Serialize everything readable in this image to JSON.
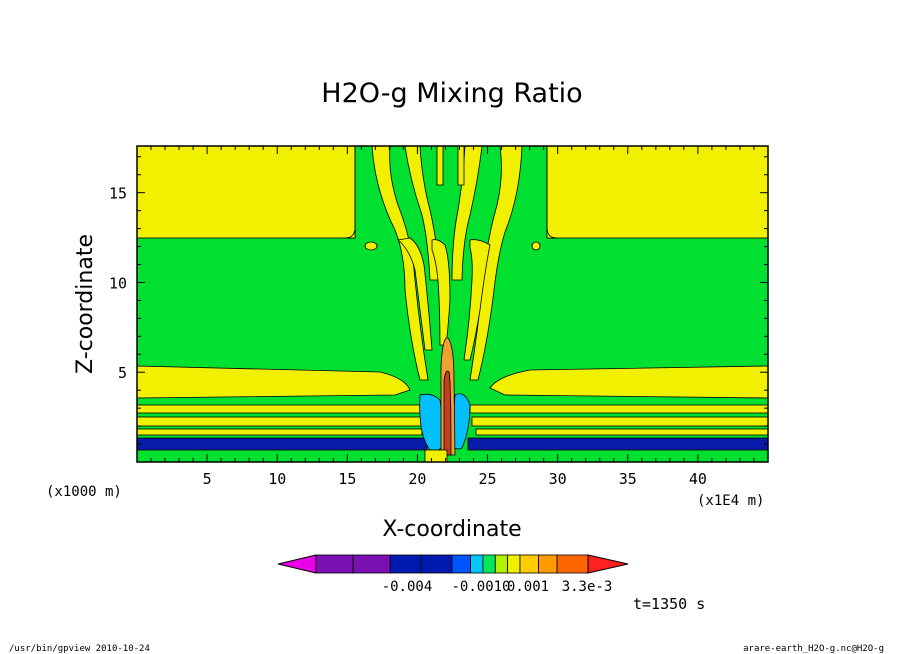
{
  "chart_data": {
    "type": "heatmap",
    "title": "H2O-g Mixing Ratio",
    "xlabel": "X-coordinate",
    "ylabel": "Z-coordinate",
    "x_scale_note": "(x1E4 m)",
    "y_scale_note": "(x1000 m)",
    "xlim": [
      0,
      45
    ],
    "ylim": [
      0,
      17.6
    ],
    "x_ticks": [
      "5",
      "10",
      "15",
      "20",
      "25",
      "30",
      "35",
      "40"
    ],
    "y_ticks": [
      "5",
      "10",
      "15"
    ],
    "x_tick_values": [
      5,
      10,
      15,
      20,
      25,
      30,
      35,
      40
    ],
    "y_tick_values": [
      5,
      10,
      15
    ],
    "colorbar": {
      "colors": [
        "#e800e8",
        "#7a10b0",
        "#7a10b0",
        "#001ab0",
        "#001ab0",
        "#0055ff",
        "#00c8ff",
        "#00e85a",
        "#b4f000",
        "#f0f000",
        "#ffcc00",
        "#ff9900",
        "#ff6600",
        "#ff2020"
      ],
      "labels": [
        "-0.004",
        "-0.0010",
        "0.001",
        "3.3e-3"
      ]
    },
    "time_label": "t=1350 s",
    "regions": {
      "background": "#00e030",
      "yellow": "#f0f000",
      "blue": "#0a1aa8",
      "light_blue": "#00c0ff",
      "orange": "#f0a030",
      "brown": "#c04020"
    }
  },
  "footer": {
    "left": "/usr/bin/gpview  2010-10-24",
    "right": "arare-earth_H2O-g.nc@H2O-g"
  }
}
